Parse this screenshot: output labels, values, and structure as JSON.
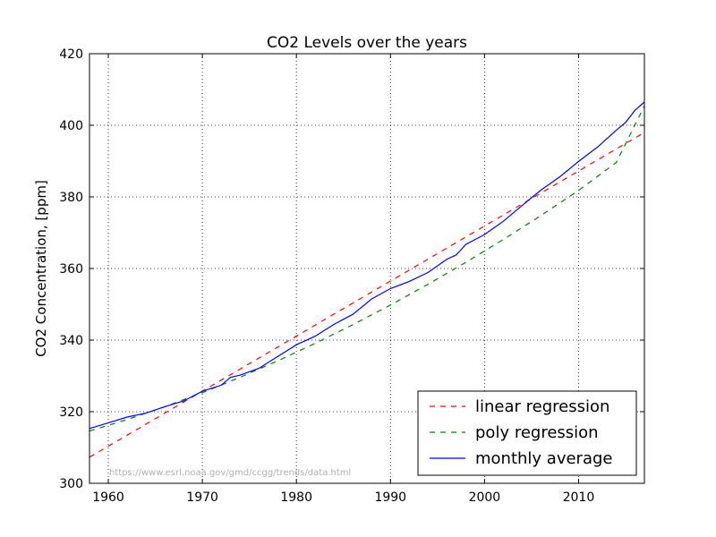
{
  "chart_data": {
    "type": "line",
    "title": "CO2 Levels over the years",
    "xlabel": "",
    "ylabel": "CO2 Concentration, [ppm]",
    "xlim": [
      1958,
      2017
    ],
    "ylim": [
      300,
      420
    ],
    "x_ticks": [
      1960,
      1970,
      1980,
      1990,
      2000,
      2010
    ],
    "y_ticks": [
      300,
      320,
      340,
      360,
      380,
      400,
      420
    ],
    "grid": true,
    "legend_position": "lower-right",
    "annotation": "https://www.esrl.noaa.gov/gmd/ccgg/trends/data.html",
    "series": [
      {
        "name": "linear regression",
        "style": "dashed",
        "color": "#ff0000",
        "x": [
          1958,
          2017
        ],
        "y": [
          307.3,
          398.0
        ]
      },
      {
        "name": "poly regression",
        "style": "dashed",
        "color": "#008000",
        "x": [
          1958,
          1962,
          1966,
          1970,
          1974,
          1978,
          1982,
          1986,
          1990,
          1994,
          1998,
          2002,
          2006,
          2010,
          2014,
          2017
        ],
        "y": [
          314.6,
          317.8,
          321.4,
          325.3,
          329.6,
          334.2,
          339.1,
          344.3,
          349.8,
          355.6,
          361.7,
          368.1,
          374.8,
          381.8,
          389.6,
          405.4
        ]
      },
      {
        "name": "monthly average",
        "style": "solid",
        "color": "#0000ff",
        "x": [
          1958,
          1960,
          1962,
          1964,
          1966,
          1968,
          1970,
          1972,
          1973,
          1974,
          1976,
          1978,
          1980,
          1982,
          1984,
          1986,
          1988,
          1990,
          1992,
          1994,
          1996,
          1997,
          1998,
          2000,
          2002,
          2004,
          2006,
          2008,
          2010,
          2012,
          2014,
          2015,
          2016,
          2017
        ],
        "y": [
          315.3,
          316.9,
          318.5,
          319.6,
          321.4,
          323.0,
          325.7,
          327.4,
          329.6,
          330.2,
          332.1,
          335.4,
          338.7,
          341.1,
          344.4,
          347.2,
          351.5,
          354.4,
          356.4,
          358.9,
          362.6,
          363.8,
          366.7,
          369.5,
          373.2,
          377.6,
          381.9,
          385.6,
          389.9,
          393.9,
          398.6,
          400.8,
          404.2,
          406.5
        ]
      }
    ]
  }
}
